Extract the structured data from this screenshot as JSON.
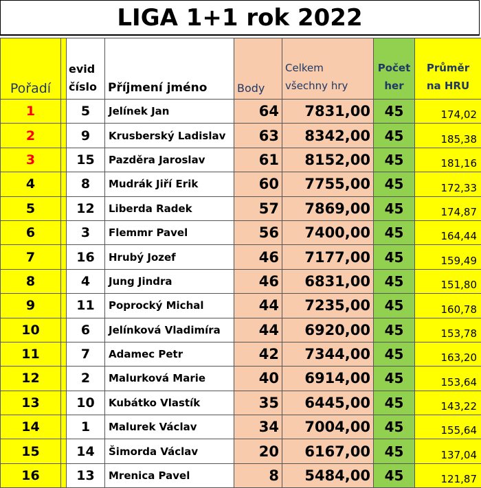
{
  "title": "LIGA 1+1 rok 2022",
  "headers": {
    "rank": "Pořadí",
    "evid_line1": "evid",
    "evid_line2": "číslo",
    "name": "Příjmení jméno",
    "points": "Body",
    "total_line1": "Celkem",
    "total_line2": "všechny hry",
    "count_line1": "Počet",
    "count_line2": "her",
    "avg_line1": "Průměr",
    "avg_line2": "na HRU"
  },
  "colors": {
    "yellow": "#ffff00",
    "orange": "#f8cbad",
    "green": "#92d050",
    "top_rank_red": "#ff0000"
  },
  "rows": [
    {
      "rank": "1",
      "evid": "5",
      "name": "Jelínek Jan",
      "points": "64",
      "total": "7831,00",
      "count": "45",
      "avg": "174,02"
    },
    {
      "rank": "2",
      "evid": "9",
      "name": "Krusberský Ladislav",
      "points": "63",
      "total": "8342,00",
      "count": "45",
      "avg": "185,38"
    },
    {
      "rank": "3",
      "evid": "15",
      "name": "Pazděra Jaroslav",
      "points": "61",
      "total": "8152,00",
      "count": "45",
      "avg": "181,16"
    },
    {
      "rank": "4",
      "evid": "8",
      "name": "Mudrák Jiří Erik",
      "points": "60",
      "total": "7755,00",
      "count": "45",
      "avg": "172,33"
    },
    {
      "rank": "5",
      "evid": "12",
      "name": "Liberda Radek",
      "points": "57",
      "total": "7869,00",
      "count": "45",
      "avg": "174,87"
    },
    {
      "rank": "6",
      "evid": "3",
      "name": "Flemmr Pavel",
      "points": "56",
      "total": "7400,00",
      "count": "45",
      "avg": "164,44"
    },
    {
      "rank": "7",
      "evid": "16",
      "name": "Hrubý Jozef",
      "points": "46",
      "total": "7177,00",
      "count": "45",
      "avg": "159,49"
    },
    {
      "rank": "8",
      "evid": "4",
      "name": "Jung Jindra",
      "points": "46",
      "total": "6831,00",
      "count": "45",
      "avg": "151,80"
    },
    {
      "rank": "9",
      "evid": "11",
      "name": "Poprocký Michal",
      "points": "44",
      "total": "7235,00",
      "count": "45",
      "avg": "160,78"
    },
    {
      "rank": "10",
      "evid": "6",
      "name": "Jelínková Vladimíra",
      "points": "44",
      "total": "6920,00",
      "count": "45",
      "avg": "153,78"
    },
    {
      "rank": "11",
      "evid": "7",
      "name": "Adamec Petr",
      "points": "42",
      "total": "7344,00",
      "count": "45",
      "avg": "163,20"
    },
    {
      "rank": "12",
      "evid": "2",
      "name": "Malurková Marie",
      "points": "40",
      "total": "6914,00",
      "count": "45",
      "avg": "153,64"
    },
    {
      "rank": "13",
      "evid": "10",
      "name": "Kubátko Vlastík",
      "points": "35",
      "total": "6445,00",
      "count": "45",
      "avg": "143,22"
    },
    {
      "rank": "14",
      "evid": "1",
      "name": "Malurek Václav",
      "points": "34",
      "total": "7004,00",
      "count": "45",
      "avg": "155,64"
    },
    {
      "rank": "15",
      "evid": "14",
      "name": "Šimorda Václav",
      "points": "20",
      "total": "6167,00",
      "count": "45",
      "avg": "137,04"
    },
    {
      "rank": "16",
      "evid": "13",
      "name": "Mrenica Pavel",
      "points": "8",
      "total": "5484,00",
      "count": "45",
      "avg": "121,87"
    }
  ]
}
